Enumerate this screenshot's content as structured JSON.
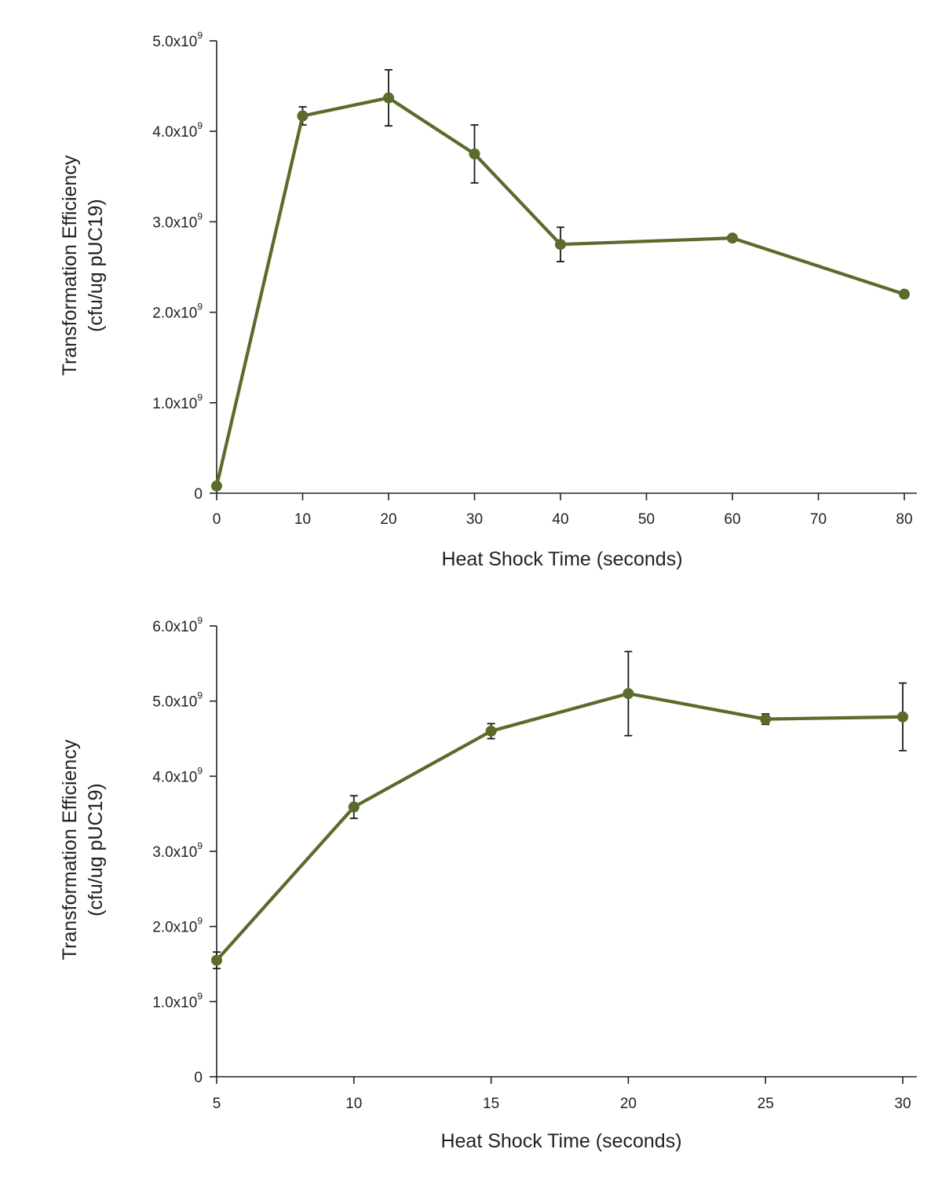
{
  "chart_data": [
    {
      "type": "line",
      "title": "",
      "xlabel": "Heat Shock Time (seconds)",
      "ylabel_line1": "Transformation Efficiency",
      "ylabel_line2": "(cfu/ug pUC19)",
      "xlim": [
        0,
        80
      ],
      "ylim": [
        0,
        5000000000
      ],
      "x_ticks": [
        0,
        10,
        20,
        30,
        40,
        50,
        60,
        70,
        80
      ],
      "x_tick_labels": [
        "0",
        "10",
        "20",
        "30",
        "40",
        "50",
        "60",
        "70",
        "80"
      ],
      "y_ticks": [
        0,
        1000000000,
        2000000000,
        3000000000,
        4000000000,
        5000000000
      ],
      "y_tick_labels": [
        {
          "base": "0",
          "exp": ""
        },
        {
          "base": "1.0x10",
          "exp": "9"
        },
        {
          "base": "2.0x10",
          "exp": "9"
        },
        {
          "base": "3.0x10",
          "exp": "9"
        },
        {
          "base": "4.0x10",
          "exp": "9"
        },
        {
          "base": "5.0x10",
          "exp": "9"
        }
      ],
      "grid": false,
      "color": "#5a6b2c",
      "series": [
        {
          "name": "Transformation Efficiency",
          "x": [
            0,
            10,
            20,
            30,
            40,
            60,
            80
          ],
          "y": [
            80000000,
            4170000000,
            4370000000,
            3750000000,
            2750000000,
            2820000000,
            2200000000
          ],
          "err": [
            0,
            100000000,
            310000000,
            320000000,
            190000000,
            0,
            0
          ]
        }
      ]
    },
    {
      "type": "line",
      "title": "",
      "xlabel": "Heat Shock Time (seconds)",
      "ylabel_line1": "Transformation Efficiency",
      "ylabel_line2": "(cfu/ug pUC19)",
      "xlim": [
        5,
        30
      ],
      "ylim": [
        0,
        6000000000
      ],
      "x_ticks": [
        5,
        10,
        15,
        20,
        25,
        30
      ],
      "x_tick_labels": [
        "5",
        "10",
        "15",
        "20",
        "25",
        "30"
      ],
      "y_ticks": [
        0,
        1000000000,
        2000000000,
        3000000000,
        4000000000,
        5000000000,
        6000000000
      ],
      "y_tick_labels": [
        {
          "base": "0",
          "exp": ""
        },
        {
          "base": "1.0x10",
          "exp": "9"
        },
        {
          "base": "2.0x10",
          "exp": "9"
        },
        {
          "base": "3.0x10",
          "exp": "9"
        },
        {
          "base": "4.0x10",
          "exp": "9"
        },
        {
          "base": "5.0x10",
          "exp": "9"
        },
        {
          "base": "6.0x10",
          "exp": "9"
        }
      ],
      "grid": false,
      "color": "#5a6b2c",
      "series": [
        {
          "name": "Transformation Efficiency",
          "x": [
            5,
            10,
            15,
            20,
            25,
            30
          ],
          "y": [
            1550000000,
            3590000000,
            4600000000,
            5100000000,
            4760000000,
            4790000000
          ],
          "err": [
            110000000,
            150000000,
            100000000,
            560000000,
            70000000,
            450000000
          ]
        }
      ]
    }
  ]
}
